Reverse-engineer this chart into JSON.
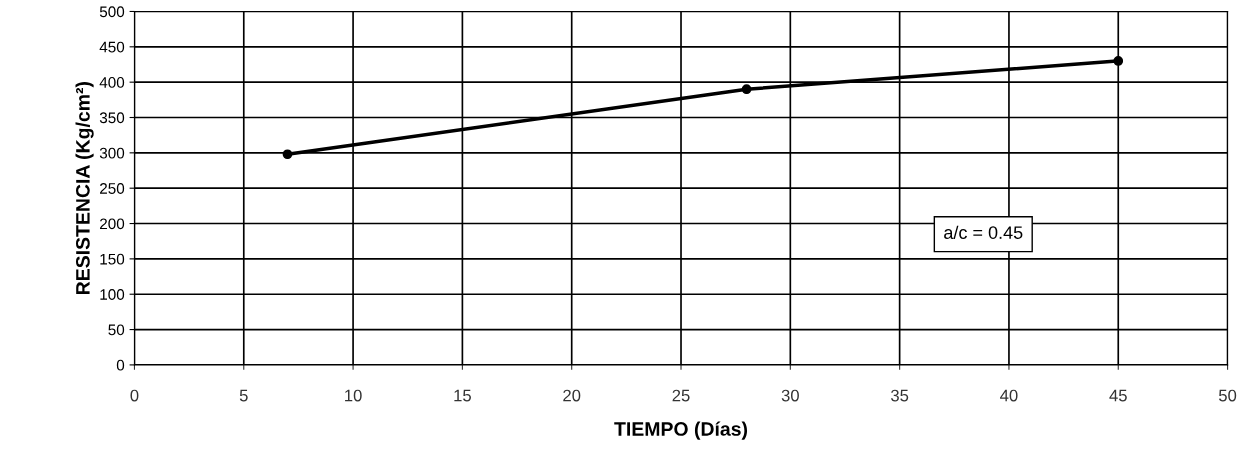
{
  "chart_data": {
    "type": "line",
    "xlabel": "TIEMPO (Días)",
    "ylabel": "RESISTENCIA (Kg/cm²)",
    "x": [
      7,
      28,
      45
    ],
    "series": [
      {
        "color": "#000000",
        "values": [
          298,
          390,
          430
        ]
      }
    ],
    "xlim": [
      0,
      50
    ],
    "xticks": [
      0,
      5,
      10,
      15,
      20,
      25,
      30,
      35,
      40,
      45,
      50
    ],
    "ylim": [
      0,
      500
    ],
    "yticks": [
      0,
      50,
      100,
      150,
      200,
      250,
      300,
      350,
      400,
      450,
      500
    ],
    "grid": true,
    "marker": "circle",
    "line_style": "solid",
    "legend": false,
    "annotations": [
      "a/c = 0.45"
    ]
  }
}
